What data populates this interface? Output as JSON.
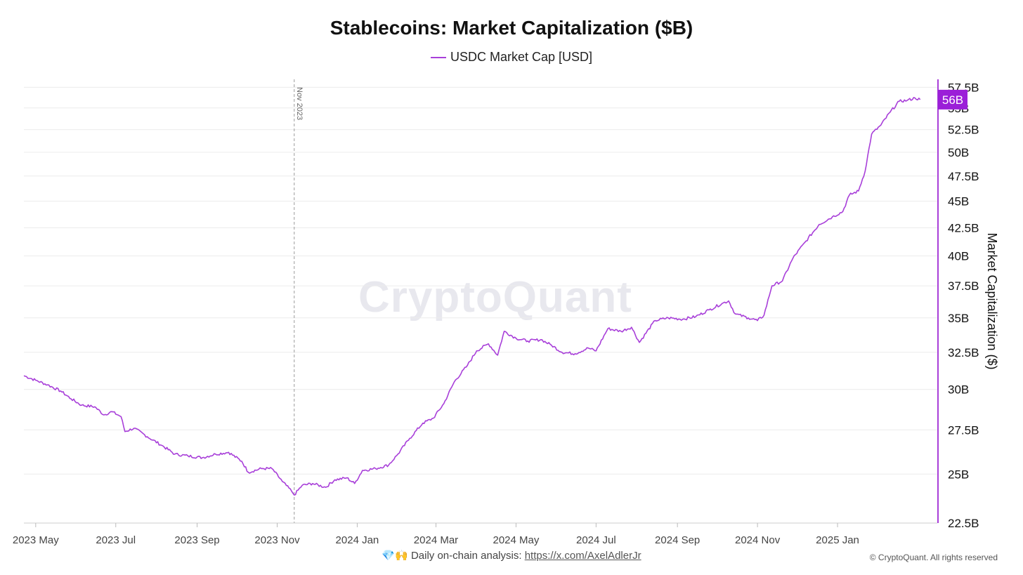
{
  "chart_data": {
    "type": "line",
    "title": "Stablecoins: Market Capitalization ($B)",
    "ylabel": "Market Capitalization ($)",
    "xlabel": "",
    "y_scale": "log",
    "ylim": [
      22.5,
      58.5
    ],
    "y_ticks": [
      {
        "value": 22.5,
        "label": "22.5B"
      },
      {
        "value": 25,
        "label": "25B"
      },
      {
        "value": 27.5,
        "label": "27.5B"
      },
      {
        "value": 30,
        "label": "30B"
      },
      {
        "value": 32.5,
        "label": "32.5B"
      },
      {
        "value": 35,
        "label": "35B"
      },
      {
        "value": 37.5,
        "label": "37.5B"
      },
      {
        "value": 40,
        "label": "40B"
      },
      {
        "value": 42.5,
        "label": "42.5B"
      },
      {
        "value": 45,
        "label": "45B"
      },
      {
        "value": 47.5,
        "label": "47.5B"
      },
      {
        "value": 50,
        "label": "50B"
      },
      {
        "value": 52.5,
        "label": "52.5B"
      },
      {
        "value": 55,
        "label": "55B"
      },
      {
        "value": 57.5,
        "label": "57.5B"
      }
    ],
    "xlim": [
      "2023-04-22",
      "2025-03-18"
    ],
    "x_ticks": [
      {
        "date": "2023-05-01",
        "label": "2023 May"
      },
      {
        "date": "2023-07-01",
        "label": "2023 Jul"
      },
      {
        "date": "2023-09-01",
        "label": "2023 Sep"
      },
      {
        "date": "2023-11-01",
        "label": "2023 Nov"
      },
      {
        "date": "2024-01-01",
        "label": "2024 Jan"
      },
      {
        "date": "2024-03-01",
        "label": "2024 Mar"
      },
      {
        "date": "2024-05-01",
        "label": "2024 May"
      },
      {
        "date": "2024-07-01",
        "label": "2024 Jul"
      },
      {
        "date": "2024-09-01",
        "label": "2024 Sep"
      },
      {
        "date": "2024-11-01",
        "label": "2024 Nov"
      },
      {
        "date": "2025-01-01",
        "label": "2025 Jan"
      }
    ],
    "grid": true,
    "legend_position": "top-center",
    "annotation": {
      "date": "2023-11-14",
      "label": "Nov 2023"
    },
    "last_value_label": "56B",
    "series": [
      {
        "name": "USDC Market Cap [USD]",
        "color": "#a83fd9",
        "points": [
          [
            "2023-04-22",
            30.9
          ],
          [
            "2023-05-01",
            30.6
          ],
          [
            "2023-05-10",
            30.3
          ],
          [
            "2023-05-20",
            29.9
          ],
          [
            "2023-05-28",
            29.4
          ],
          [
            "2023-06-05",
            29.0
          ],
          [
            "2023-06-15",
            28.9
          ],
          [
            "2023-06-22",
            28.4
          ],
          [
            "2023-06-28",
            28.6
          ],
          [
            "2023-07-05",
            28.3
          ],
          [
            "2023-07-08",
            27.4
          ],
          [
            "2023-07-15",
            27.6
          ],
          [
            "2023-07-25",
            27.1
          ],
          [
            "2023-08-05",
            26.6
          ],
          [
            "2023-08-15",
            26.1
          ],
          [
            "2023-08-25",
            26.0
          ],
          [
            "2023-09-05",
            25.9
          ],
          [
            "2023-09-15",
            26.1
          ],
          [
            "2023-09-25",
            26.2
          ],
          [
            "2023-10-05",
            25.7
          ],
          [
            "2023-10-10",
            25.1
          ],
          [
            "2023-10-20",
            25.3
          ],
          [
            "2023-10-28",
            25.3
          ],
          [
            "2023-11-05",
            24.6
          ],
          [
            "2023-11-12",
            24.1
          ],
          [
            "2023-11-14",
            23.9
          ],
          [
            "2023-11-20",
            24.4
          ],
          [
            "2023-11-28",
            24.5
          ],
          [
            "2023-12-08",
            24.3
          ],
          [
            "2023-12-15",
            24.7
          ],
          [
            "2023-12-24",
            24.8
          ],
          [
            "2023-12-30",
            24.5
          ],
          [
            "2024-01-05",
            25.2
          ],
          [
            "2024-01-15",
            25.3
          ],
          [
            "2024-01-25",
            25.5
          ],
          [
            "2024-02-01",
            26.1
          ],
          [
            "2024-02-10",
            27.0
          ],
          [
            "2024-02-20",
            27.9
          ],
          [
            "2024-02-28",
            28.2
          ],
          [
            "2024-03-07",
            29.1
          ],
          [
            "2024-03-15",
            30.5
          ],
          [
            "2024-03-25",
            31.6
          ],
          [
            "2024-04-01",
            32.6
          ],
          [
            "2024-04-10",
            33.1
          ],
          [
            "2024-04-17",
            32.3
          ],
          [
            "2024-04-22",
            34.0
          ],
          [
            "2024-05-01",
            33.5
          ],
          [
            "2024-05-10",
            33.3
          ],
          [
            "2024-05-20",
            33.4
          ],
          [
            "2024-05-28",
            33.0
          ],
          [
            "2024-06-05",
            32.5
          ],
          [
            "2024-06-15",
            32.4
          ],
          [
            "2024-06-25",
            32.8
          ],
          [
            "2024-07-01",
            32.6
          ],
          [
            "2024-07-10",
            34.2
          ],
          [
            "2024-07-20",
            34.0
          ],
          [
            "2024-07-28",
            34.3
          ],
          [
            "2024-08-03",
            33.2
          ],
          [
            "2024-08-15",
            34.8
          ],
          [
            "2024-08-25",
            35.0
          ],
          [
            "2024-09-05",
            34.9
          ],
          [
            "2024-09-15",
            35.1
          ],
          [
            "2024-09-25",
            35.6
          ],
          [
            "2024-10-05",
            36.1
          ],
          [
            "2024-10-10",
            36.3
          ],
          [
            "2024-10-15",
            35.3
          ],
          [
            "2024-10-25",
            35.0
          ],
          [
            "2024-11-01",
            34.8
          ],
          [
            "2024-11-06",
            35.2
          ],
          [
            "2024-11-12",
            37.5
          ],
          [
            "2024-11-20",
            37.9
          ],
          [
            "2024-11-28",
            39.8
          ],
          [
            "2024-12-08",
            41.3
          ],
          [
            "2024-12-18",
            42.8
          ],
          [
            "2024-12-28",
            43.5
          ],
          [
            "2025-01-05",
            44.0
          ],
          [
            "2025-01-10",
            45.6
          ],
          [
            "2025-01-17",
            46.0
          ],
          [
            "2025-01-22",
            48.0
          ],
          [
            "2025-01-27",
            52.0
          ],
          [
            "2025-02-03",
            53.0
          ],
          [
            "2025-02-10",
            54.5
          ],
          [
            "2025-02-17",
            55.8
          ],
          [
            "2025-02-23",
            55.9
          ],
          [
            "2025-03-01",
            56.2
          ],
          [
            "2025-03-05",
            56.0
          ]
        ]
      }
    ]
  },
  "watermark": "CryptoQuant",
  "footer": {
    "emoji": "💎🙌",
    "text": "Daily on-chain analysis:",
    "link_text": "https://x.com/AxelAdlerJr",
    "copyright": "© CryptoQuant. All rights reserved"
  }
}
